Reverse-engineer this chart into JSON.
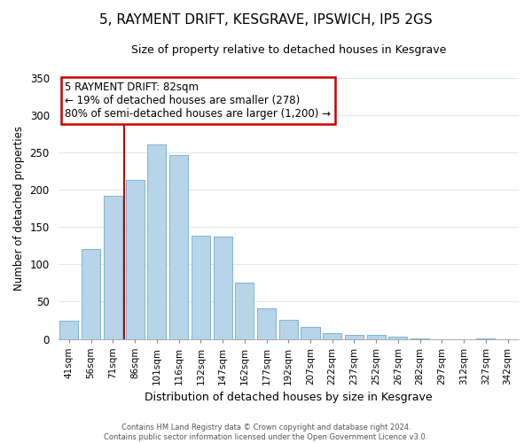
{
  "title": "5, RAYMENT DRIFT, KESGRAVE, IPSWICH, IP5 2GS",
  "subtitle": "Size of property relative to detached houses in Kesgrave",
  "xlabel": "Distribution of detached houses by size in Kesgrave",
  "ylabel": "Number of detached properties",
  "bar_labels": [
    "41sqm",
    "56sqm",
    "71sqm",
    "86sqm",
    "101sqm",
    "116sqm",
    "132sqm",
    "147sqm",
    "162sqm",
    "177sqm",
    "192sqm",
    "207sqm",
    "222sqm",
    "237sqm",
    "252sqm",
    "267sqm",
    "282sqm",
    "297sqm",
    "312sqm",
    "327sqm",
    "342sqm"
  ],
  "bar_values": [
    24,
    120,
    192,
    213,
    261,
    247,
    138,
    137,
    75,
    41,
    25,
    16,
    8,
    5,
    5,
    3,
    1,
    0,
    0,
    1,
    0
  ],
  "bar_color": "#b8d4e8",
  "bar_edge_color": "#7fb3d3",
  "vline_color": "#cc0000",
  "annotation_title": "5 RAYMENT DRIFT: 82sqm",
  "annotation_line1": "← 19% of detached houses are smaller (278)",
  "annotation_line2": "80% of semi-detached houses are larger (1,200) →",
  "annotation_box_color": "#ffffff",
  "annotation_box_edge": "#cc0000",
  "ylim": [
    0,
    350
  ],
  "yticks": [
    0,
    50,
    100,
    150,
    200,
    250,
    300,
    350
  ],
  "grid_color": "#dde8f0",
  "footnote1": "Contains HM Land Registry data © Crown copyright and database right 2024.",
  "footnote2": "Contains public sector information licensed under the Open Government Licence v3.0."
}
